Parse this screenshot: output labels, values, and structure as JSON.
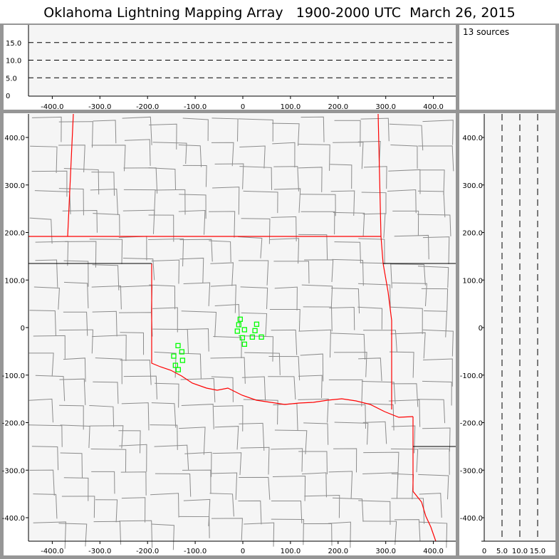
{
  "title": "Oklahoma Lightning Mapping Array   1900-2000 UTC  March 26, 2015",
  "source_count_label": "13 sources",
  "colors": {
    "frame": "#969696",
    "plot_bg": "#f5f5f5",
    "county": "#8c8c8c",
    "state": "#ff0000",
    "source": "#00ff00"
  },
  "chart_data": [
    {
      "type": "line",
      "panel": "altitude-vs-east-west",
      "xlim": [
        -450,
        450
      ],
      "ylim": [
        0,
        20
      ],
      "xticks": [
        "-400.0",
        "-300.0",
        "-200.0",
        "-100.0",
        "0",
        "100.0",
        "200.0",
        "300.0",
        "400.0"
      ],
      "xtick_values": [
        -400,
        -300,
        -200,
        -100,
        0,
        100,
        200,
        300,
        400
      ],
      "yticks": [
        "0",
        "5.0",
        "10.0",
        "15.0"
      ],
      "ytick_values": [
        0,
        5,
        10,
        15
      ],
      "dashed_reference_lines": [
        5,
        10,
        15
      ]
    },
    {
      "type": "scatter",
      "panel": "plan-view-map",
      "xlim": [
        -450,
        450
      ],
      "ylim": [
        -450,
        450
      ],
      "xticks": [
        "-400.0",
        "-300.0",
        "-200.0",
        "-100.0",
        "0",
        "100.0",
        "200.0",
        "300.0",
        "400.0"
      ],
      "xtick_values": [
        -400,
        -300,
        -200,
        -100,
        0,
        100,
        200,
        300,
        400
      ],
      "yticks": [
        "-400.0",
        "-300.0",
        "-200.0",
        "-100.0",
        "0",
        "100.0",
        "200.0",
        "300.0",
        "400.0"
      ],
      "ytick_values": [
        -400,
        -300,
        -200,
        -100,
        0,
        100,
        200,
        300,
        400
      ],
      "points": [
        [
          -5.5,
          17.5
        ],
        [
          -8.5,
          6
        ],
        [
          29,
          7
        ],
        [
          -11.5,
          -7.5
        ],
        [
          3.5,
          -4.5
        ],
        [
          25.5,
          -6.5
        ],
        [
          -1,
          -21.5
        ],
        [
          20,
          -20
        ],
        [
          39,
          -20
        ],
        [
          3.5,
          -35
        ],
        [
          -136,
          -38
        ],
        [
          -128,
          -51
        ],
        [
          -145,
          -60
        ],
        [
          -126.5,
          -69
        ],
        [
          -141.5,
          -79.5
        ],
        [
          -135.5,
          -88.5
        ]
      ]
    },
    {
      "type": "line",
      "panel": "north-south-vs-altitude",
      "xlim": [
        0,
        20
      ],
      "ylim": [
        -450,
        450
      ],
      "xticks": [
        "0",
        "5.0",
        "10.0",
        "15.0"
      ],
      "xtick_values": [
        0,
        5,
        10,
        15
      ],
      "yticks": [
        "-400.0",
        "-300.0",
        "-200.0",
        "-100.0",
        "0",
        "100.0",
        "200.0",
        "300.0",
        "400.0"
      ],
      "ytick_values": [
        -400,
        -300,
        -200,
        -100,
        0,
        100,
        200,
        300,
        400
      ],
      "dashed_reference_lines": [
        5,
        10,
        15
      ]
    }
  ]
}
